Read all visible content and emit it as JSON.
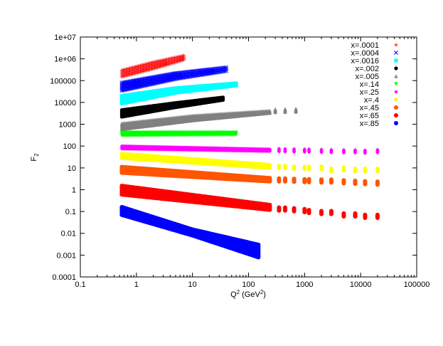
{
  "chart_data": {
    "type": "scatter",
    "title": "",
    "xlabel": "Q2 (GeV2)",
    "xlabel_parts": {
      "base": "Q",
      "sup1": "2",
      "mid": " (GeV",
      "sup2": "2",
      "end": ")"
    },
    "ylabel": "F2",
    "ylabel_parts": {
      "base": "F",
      "sub": "2"
    },
    "xscale": "log",
    "yscale": "log",
    "xlim": [
      0.1,
      100000
    ],
    "ylim": [
      0.0001,
      10000000
    ],
    "grid": false,
    "legend_position": "top-right",
    "x_ticks": [
      "0.1",
      "1",
      "10",
      "100",
      "1000",
      "10000",
      "100000"
    ],
    "y_ticks": [
      "0.0001",
      "0.001",
      "0.01",
      "0.1",
      "1",
      "10",
      "100",
      "1000",
      "10000",
      "100000",
      "1e+06",
      "1e+07"
    ],
    "series": [
      {
        "name": "x=.0001",
        "color": "#ff0000",
        "marker": "plus",
        "band": [
          [
            0.55,
            150000,
            300000
          ],
          [
            2,
            350000,
            700000
          ],
          [
            7,
            900000,
            1400000
          ]
        ],
        "points": []
      },
      {
        "name": "x=.0004",
        "color": "#0000ff",
        "marker": "cross",
        "band": [
          [
            0.55,
            35000,
            80000
          ],
          [
            5,
            120000,
            220000
          ],
          [
            40,
            280000,
            400000
          ]
        ],
        "points": []
      },
      {
        "name": "x=.0016",
        "color": "#00ffff",
        "marker": "square",
        "band": [
          [
            0.55,
            9000,
            20000
          ],
          [
            5,
            28000,
            45000
          ],
          [
            60,
            60000,
            75000
          ]
        ],
        "points": []
      },
      {
        "name": "x=.002",
        "color": "#000000",
        "marker": "circle",
        "band": [
          [
            0.55,
            2200,
            4500
          ],
          [
            5,
            6000,
            9500
          ],
          [
            35,
            13000,
            17000
          ]
        ],
        "points": []
      },
      {
        "name": "x=.005",
        "color": "#808080",
        "marker": "triangle",
        "band": [
          [
            0.55,
            600,
            1100
          ],
          [
            10,
            1500,
            2500
          ],
          [
            240,
            3300,
            4200
          ]
        ],
        "points": [
          [
            300,
            4200
          ],
          [
            450,
            4300
          ],
          [
            700,
            4400
          ]
        ]
      },
      {
        "name": "x=.14",
        "color": "#00ff00",
        "marker": "triangle-down",
        "band": [
          [
            0.55,
            300,
            420
          ],
          [
            60,
            330,
            420
          ]
        ],
        "points": []
      },
      {
        "name": "x=.25",
        "color": "#ff00ff",
        "marker": "diamond",
        "band": [
          [
            0.55,
            75,
            100
          ],
          [
            240,
            58,
            72
          ]
        ],
        "points": [
          [
            350,
            65
          ],
          [
            450,
            64
          ],
          [
            650,
            63
          ],
          [
            1000,
            62
          ],
          [
            1200,
            62
          ],
          [
            2000,
            60
          ],
          [
            3000,
            58
          ],
          [
            5000,
            57
          ],
          [
            8000,
            57
          ],
          [
            12000,
            55
          ],
          [
            20000,
            58
          ]
        ]
      },
      {
        "name": "x=.4",
        "color": "#ffff00",
        "marker": "circle",
        "band": [
          [
            0.55,
            28,
            45
          ],
          [
            240,
            10,
            14
          ]
        ],
        "points": [
          [
            350,
            11
          ],
          [
            450,
            11
          ],
          [
            650,
            10
          ],
          [
            1000,
            10
          ],
          [
            1200,
            10
          ],
          [
            2000,
            10
          ],
          [
            3000,
            8
          ],
          [
            5000,
            9
          ],
          [
            8000,
            8
          ],
          [
            12000,
            8
          ],
          [
            20000,
            8
          ]
        ]
      },
      {
        "name": "x=.45",
        "color": "#ff5500",
        "marker": "circle-half",
        "band": [
          [
            0.55,
            6,
            11
          ],
          [
            240,
            2.4,
            3.4
          ]
        ],
        "points": [
          [
            350,
            2.8
          ],
          [
            450,
            2.8
          ],
          [
            650,
            2.7
          ],
          [
            1000,
            2.6
          ],
          [
            1200,
            2.6
          ],
          [
            2000,
            2.5
          ],
          [
            3000,
            2.5
          ],
          [
            5000,
            2.3
          ],
          [
            8000,
            2.2
          ],
          [
            12000,
            2.1
          ],
          [
            20000,
            2.0
          ]
        ]
      },
      {
        "name": "x=.65",
        "color": "#ff0000",
        "marker": "circle-half",
        "band": [
          [
            0.55,
            0.6,
            1.5
          ],
          [
            240,
            0.12,
            0.2
          ]
        ],
        "points": [
          [
            350,
            0.13
          ],
          [
            450,
            0.13
          ],
          [
            650,
            0.12
          ],
          [
            1000,
            0.11
          ],
          [
            1200,
            0.1
          ],
          [
            2000,
            0.09
          ],
          [
            3000,
            0.09
          ],
          [
            5000,
            0.07
          ],
          [
            8000,
            0.07
          ],
          [
            12000,
            0.06
          ],
          [
            20000,
            0.06
          ]
        ]
      },
      {
        "name": "x=.85",
        "color": "#0000ff",
        "marker": "circle-pattern",
        "band": [
          [
            0.55,
            0.07,
            0.16
          ],
          [
            10,
            0.008,
            0.015
          ],
          [
            150,
            0.0008,
            0.003
          ]
        ],
        "points": []
      }
    ]
  }
}
